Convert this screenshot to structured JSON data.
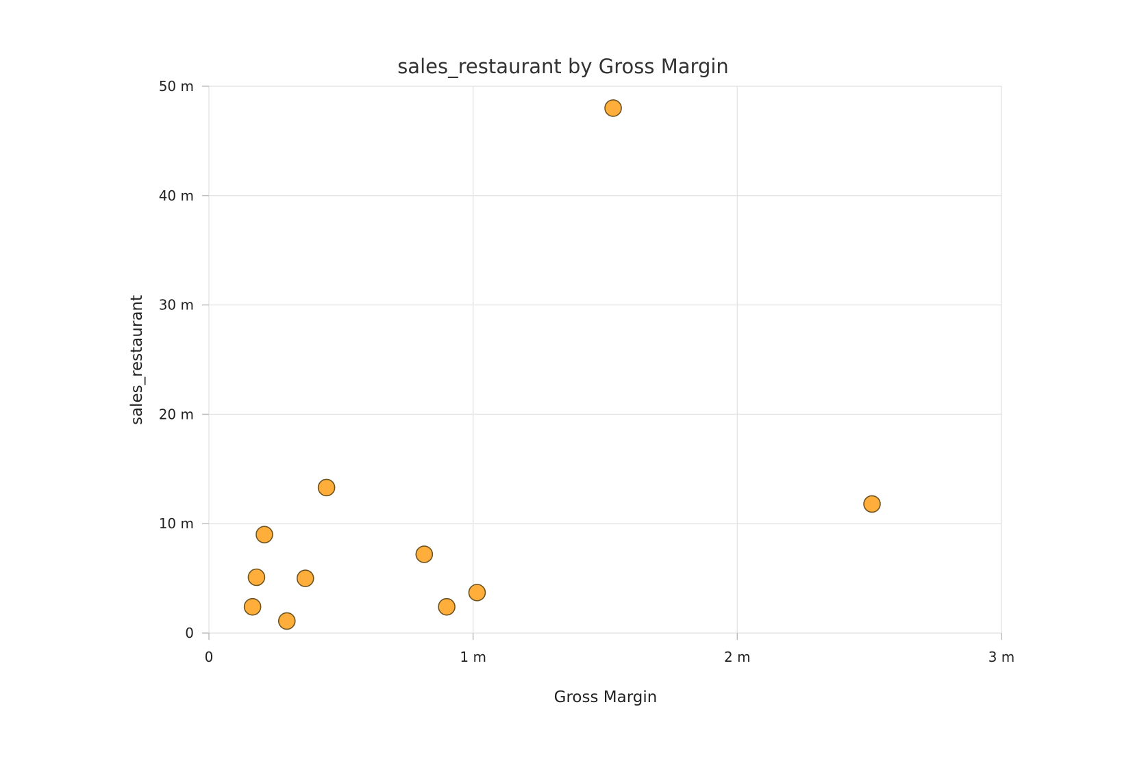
{
  "chart_data": {
    "type": "scatter",
    "title": "sales_restaurant by Gross Margin",
    "xlabel": "Gross Margin",
    "ylabel": "sales_restaurant",
    "xlim": [
      0,
      3000000
    ],
    "ylim": [
      0,
      50000000
    ],
    "x_ticks": [
      {
        "value": 0,
        "label": "0"
      },
      {
        "value": 1000000,
        "label": "1 m"
      },
      {
        "value": 2000000,
        "label": "2 m"
      },
      {
        "value": 3000000,
        "label": "3 m"
      }
    ],
    "y_ticks": [
      {
        "value": 0,
        "label": "0"
      },
      {
        "value": 10000000,
        "label": "10 m"
      },
      {
        "value": 20000000,
        "label": "20 m"
      },
      {
        "value": 30000000,
        "label": "30 m"
      },
      {
        "value": 40000000,
        "label": "40 m"
      },
      {
        "value": 50000000,
        "label": "50 m"
      }
    ],
    "grid": true,
    "legend": "none",
    "marker_color": "#ffae3b",
    "marker_edge_color": "#6b5322",
    "series": [
      {
        "points": [
          {
            "x": 1530000,
            "y": 48000000
          },
          {
            "x": 2510000,
            "y": 11800000
          },
          {
            "x": 445000,
            "y": 13300000
          },
          {
            "x": 210000,
            "y": 9000000
          },
          {
            "x": 815000,
            "y": 7200000
          },
          {
            "x": 180000,
            "y": 5100000
          },
          {
            "x": 365000,
            "y": 5000000
          },
          {
            "x": 1015000,
            "y": 3700000
          },
          {
            "x": 165000,
            "y": 2400000
          },
          {
            "x": 900000,
            "y": 2400000
          },
          {
            "x": 295000,
            "y": 1100000
          }
        ]
      }
    ]
  }
}
